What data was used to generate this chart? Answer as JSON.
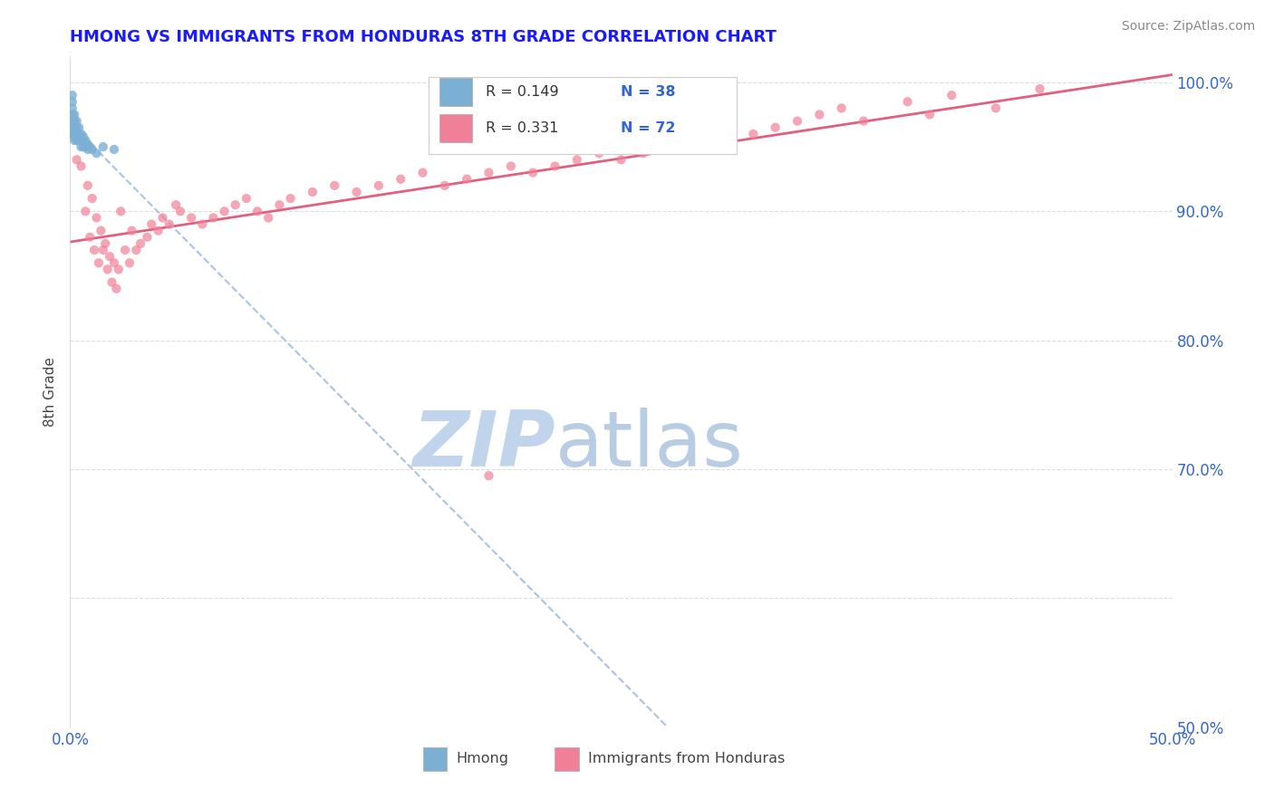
{
  "title": "HMONG VS IMMIGRANTS FROM HONDURAS 8TH GRADE CORRELATION CHART",
  "source": "Source: ZipAtlas.com",
  "ylabel": "8th Grade",
  "xlim": [
    0.0,
    0.5
  ],
  "ylim": [
    0.5,
    1.02
  ],
  "xticks": [
    0.0,
    0.1,
    0.2,
    0.3,
    0.4,
    0.5
  ],
  "xtick_labels": [
    "0.0%",
    "",
    "",
    "",
    "",
    "50.0%"
  ],
  "yticks": [
    0.5,
    0.6,
    0.7,
    0.8,
    0.9,
    1.0
  ],
  "ytick_labels": [
    "50.0%",
    "",
    "70.0%",
    "80.0%",
    "90.0%",
    "100.0%"
  ],
  "hmong_R": 0.149,
  "hmong_N": 38,
  "honduras_R": 0.331,
  "honduras_N": 72,
  "hmong_color": "#7bafd4",
  "honduras_color": "#f08098",
  "hmong_line_color": "#a8c4e0",
  "honduras_line_color": "#e06080",
  "watermark_zip_color": "#c0d4ec",
  "watermark_atlas_color": "#b8cce4",
  "title_color": "#1a1aff",
  "tick_color": "#3366cc",
  "ylabel_color": "#444444",
  "source_color": "#888888",
  "grid_color": "#dddddd",
  "legend_text_color": "#333333",
  "legend_N_color": "#3366cc",
  "hmong_x": [
    0.001,
    0.001,
    0.001,
    0.001,
    0.001,
    0.001,
    0.001,
    0.002,
    0.002,
    0.002,
    0.002,
    0.002,
    0.002,
    0.003,
    0.003,
    0.003,
    0.003,
    0.003,
    0.004,
    0.004,
    0.004,
    0.004,
    0.005,
    0.005,
    0.005,
    0.005,
    0.006,
    0.006,
    0.006,
    0.007,
    0.007,
    0.008,
    0.008,
    0.009,
    0.01,
    0.012,
    0.015,
    0.02
  ],
  "hmong_y": [
    0.99,
    0.985,
    0.98,
    0.975,
    0.97,
    0.965,
    0.96,
    0.975,
    0.97,
    0.965,
    0.96,
    0.958,
    0.955,
    0.97,
    0.965,
    0.96,
    0.958,
    0.955,
    0.965,
    0.96,
    0.958,
    0.955,
    0.96,
    0.958,
    0.955,
    0.95,
    0.958,
    0.955,
    0.95,
    0.955,
    0.95,
    0.952,
    0.948,
    0.95,
    0.948,
    0.945,
    0.95,
    0.948
  ],
  "honduras_x": [
    0.003,
    0.005,
    0.007,
    0.008,
    0.009,
    0.01,
    0.011,
    0.012,
    0.013,
    0.014,
    0.015,
    0.016,
    0.017,
    0.018,
    0.019,
    0.02,
    0.021,
    0.022,
    0.023,
    0.025,
    0.027,
    0.028,
    0.03,
    0.032,
    0.035,
    0.037,
    0.04,
    0.042,
    0.045,
    0.048,
    0.05,
    0.055,
    0.06,
    0.065,
    0.07,
    0.075,
    0.08,
    0.085,
    0.09,
    0.095,
    0.1,
    0.11,
    0.12,
    0.13,
    0.14,
    0.15,
    0.16,
    0.17,
    0.18,
    0.19,
    0.2,
    0.21,
    0.22,
    0.23,
    0.24,
    0.25,
    0.26,
    0.27,
    0.28,
    0.29,
    0.3,
    0.31,
    0.32,
    0.33,
    0.34,
    0.35,
    0.36,
    0.38,
    0.39,
    0.4,
    0.42,
    0.44
  ],
  "honduras_y": [
    0.94,
    0.935,
    0.9,
    0.92,
    0.88,
    0.91,
    0.87,
    0.895,
    0.86,
    0.885,
    0.87,
    0.875,
    0.855,
    0.865,
    0.845,
    0.86,
    0.84,
    0.855,
    0.9,
    0.87,
    0.86,
    0.885,
    0.87,
    0.875,
    0.88,
    0.89,
    0.885,
    0.895,
    0.89,
    0.905,
    0.9,
    0.895,
    0.89,
    0.895,
    0.9,
    0.905,
    0.91,
    0.9,
    0.895,
    0.905,
    0.91,
    0.915,
    0.92,
    0.915,
    0.92,
    0.925,
    0.93,
    0.92,
    0.925,
    0.93,
    0.935,
    0.93,
    0.935,
    0.94,
    0.945,
    0.94,
    0.945,
    0.95,
    0.955,
    0.96,
    0.965,
    0.96,
    0.965,
    0.97,
    0.975,
    0.98,
    0.97,
    0.985,
    0.975,
    0.99,
    0.98,
    0.995
  ],
  "honduras_outlier_x": [
    0.19
  ],
  "honduras_outlier_y": [
    0.695
  ]
}
